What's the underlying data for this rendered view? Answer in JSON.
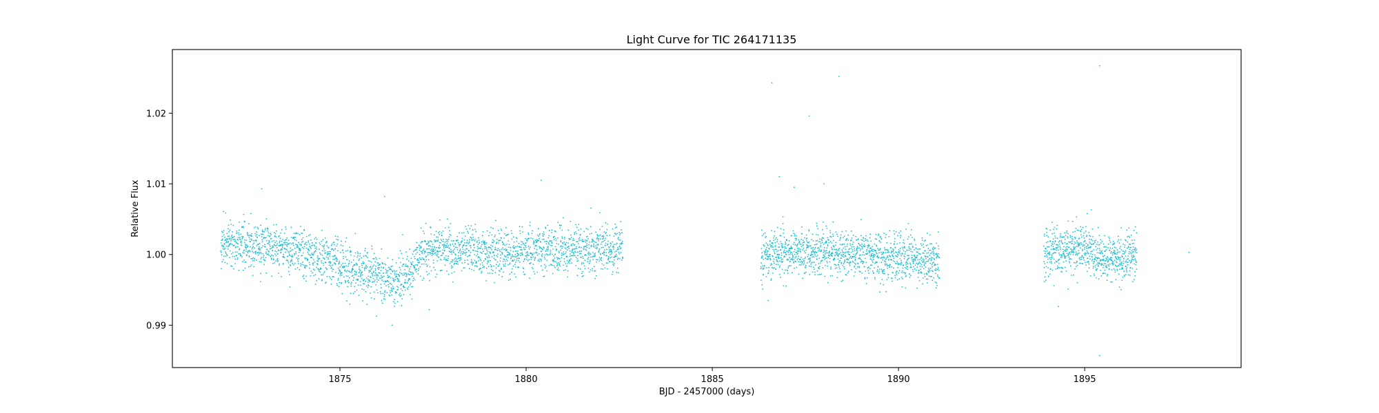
{
  "chart_data": {
    "type": "scatter",
    "title": "Light Curve for TIC 264171135",
    "xlabel": "BJD - 2457000 (days)",
    "ylabel": "Relative Flux",
    "xlim": [
      1870.5,
      1899.2
    ],
    "ylim": [
      0.984,
      1.029
    ],
    "xticks": [
      1875,
      1880,
      1885,
      1890,
      1895
    ],
    "xtick_labels": [
      "1875",
      "1880",
      "1885",
      "1890",
      "1895"
    ],
    "yticks": [
      0.99,
      1.0,
      1.01,
      1.02
    ],
    "ytick_labels": [
      "0.99",
      "1.00",
      "1.01",
      "1.02"
    ],
    "grid": false,
    "marker_color": "#17becf",
    "series": [
      {
        "segments": [
          {
            "x_start": 1871.8,
            "x_end": 1882.6,
            "trend": [
              [
                1871.8,
                1.0015
              ],
              [
                1873.0,
                1.0012
              ],
              [
                1874.0,
                1.0005
              ],
              [
                1875.0,
                0.9988
              ],
              [
                1875.8,
                0.9972
              ],
              [
                1876.5,
                0.9962
              ],
              [
                1876.9,
                0.9975
              ],
              [
                1877.2,
                1.0003
              ],
              [
                1878.0,
                1.0008
              ],
              [
                1879.0,
                1.0002
              ],
              [
                1880.0,
                1.0003
              ],
              [
                1881.0,
                1.0008
              ],
              [
                1882.0,
                1.001
              ],
              [
                1882.6,
                1.0005
              ]
            ],
            "scatter": 0.0022,
            "n": 2600
          },
          {
            "x_start": 1886.3,
            "x_end": 1891.1,
            "trend": [
              [
                1886.3,
                0.9995
              ],
              [
                1887.0,
                1.0005
              ],
              [
                1888.0,
                1.0003
              ],
              [
                1889.0,
                1.0
              ],
              [
                1890.0,
                0.9995
              ],
              [
                1891.1,
                0.9985
              ]
            ],
            "scatter": 0.0023,
            "n": 1300
          },
          {
            "x_start": 1893.9,
            "x_end": 1896.4,
            "trend": [
              [
                1893.9,
                0.9998
              ],
              [
                1894.5,
                1.0008
              ],
              [
                1895.0,
                1.001
              ],
              [
                1895.6,
                0.9992
              ],
              [
                1896.4,
                0.9998
              ]
            ],
            "scatter": 0.0023,
            "n": 700
          }
        ],
        "outliers": [
          [
            1886.6,
            1.0243
          ],
          [
            1887.6,
            1.0196
          ],
          [
            1888.4,
            1.0252
          ],
          [
            1895.4,
            1.0267
          ],
          [
            1895.4,
            0.9857
          ],
          [
            1886.8,
            1.011
          ],
          [
            1887.2,
            1.0095
          ],
          [
            1880.4,
            1.0105
          ],
          [
            1876.2,
            1.0082
          ],
          [
            1872.9,
            1.0093
          ],
          [
            1897.8,
            1.0003
          ],
          [
            1877.4,
            0.9922
          ],
          [
            1876.4,
            0.99
          ],
          [
            1888.0,
            1.01
          ],
          [
            1886.5,
            0.9935
          ]
        ]
      }
    ]
  }
}
